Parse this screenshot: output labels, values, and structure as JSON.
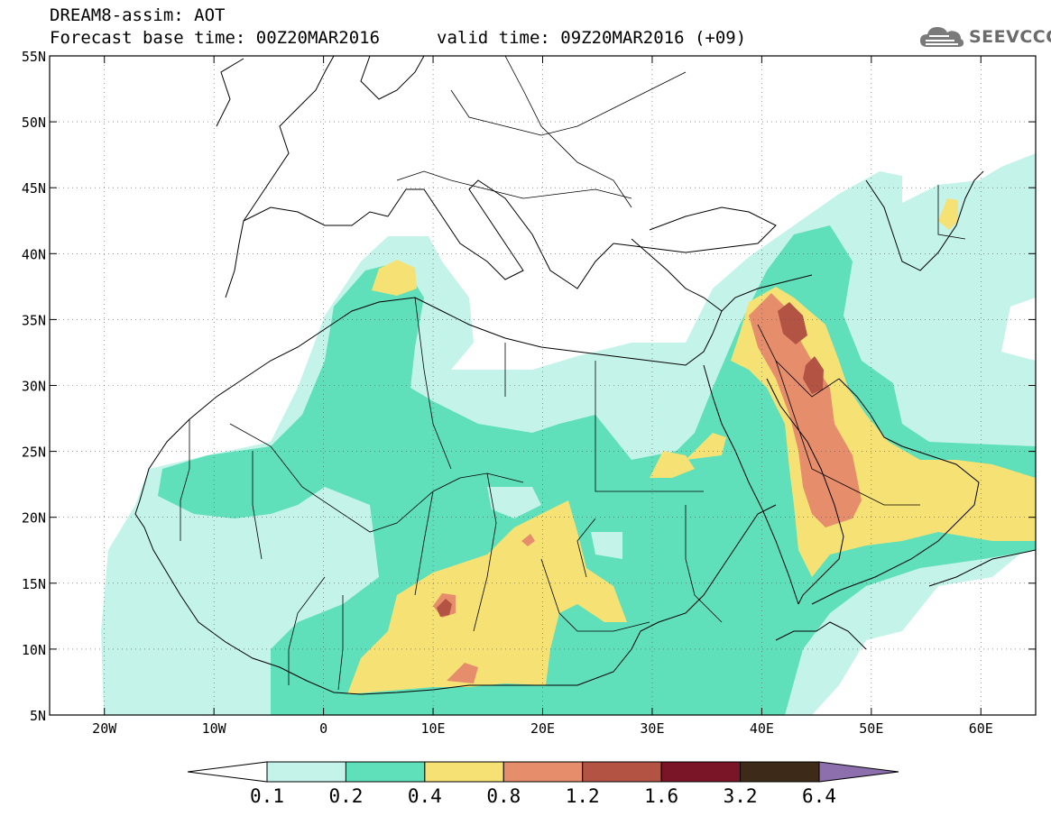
{
  "header": {
    "model_title": "DREAM8-assim: AOT",
    "forecast_base": "Forecast base time: 00Z20MAR2016",
    "valid_time": "valid time: 09Z20MAR2016 (+09)"
  },
  "logo": {
    "text": "SEEVCCC",
    "icon": "cloud-icon"
  },
  "map": {
    "lon_range": [
      -25,
      65
    ],
    "lat_range": [
      5,
      55
    ],
    "lat_labels": [
      "5N",
      "10N",
      "15N",
      "20N",
      "25N",
      "30N",
      "35N",
      "40N",
      "45N",
      "50N",
      "55N"
    ],
    "lon_labels": [
      "20W",
      "10W",
      "0",
      "10E",
      "20E",
      "30E",
      "40E",
      "50E",
      "60E"
    ]
  },
  "legend": {
    "labels": [
      "0.1",
      "0.2",
      "0.4",
      "0.8",
      "1.2",
      "1.6",
      "3.2",
      "6.4"
    ],
    "colors": [
      "#ffffff",
      "#c4f3ea",
      "#5fdfba",
      "#f6e274",
      "#e68e6c",
      "#b35344",
      "#7a1527",
      "#3d2a18",
      "#8e6fae"
    ]
  }
}
